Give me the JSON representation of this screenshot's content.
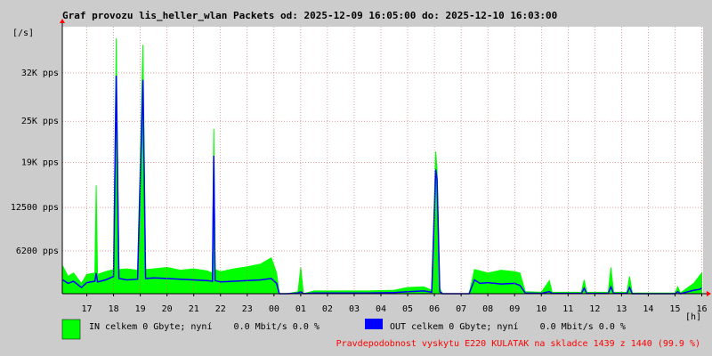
{
  "chart_data": {
    "type": "mrtg",
    "title": "Graf provozu lis_heller_wlan Packets od: 2025-12-09 16:05:00 do: 2025-12-10 16:03:00",
    "y_unit": "[/s]",
    "x_unit": "[h]",
    "xlim": [
      16.083,
      40.05
    ],
    "xticks": [
      17,
      18,
      19,
      20,
      21,
      22,
      23,
      {
        "value": 24,
        "label": "00"
      },
      {
        "value": 25,
        "label": "01"
      },
      {
        "value": 26,
        "label": "02"
      },
      {
        "value": 27,
        "label": "03"
      },
      {
        "value": 28,
        "label": "04"
      },
      {
        "value": 29,
        "label": "05"
      },
      {
        "value": 30,
        "label": "06"
      },
      {
        "value": 31,
        "label": "07"
      },
      {
        "value": 32,
        "label": "08"
      },
      {
        "value": 33,
        "label": "09"
      },
      {
        "value": 34,
        "label": "10"
      },
      {
        "value": 35,
        "label": "11"
      },
      {
        "value": 36,
        "label": "12"
      },
      {
        "value": 37,
        "label": "13"
      },
      {
        "value": 38,
        "label": "14"
      },
      {
        "value": 39,
        "label": "15"
      },
      {
        "value": 40,
        "label": "16"
      }
    ],
    "ylim": [
      0,
      38700
    ],
    "yticks": [
      {
        "value": 6200,
        "label": "6200 pps"
      },
      {
        "value": 12500,
        "label": "12500 pps"
      },
      {
        "value": 19000,
        "label": "19K pps"
      },
      {
        "value": 25000,
        "label": "25K pps"
      },
      {
        "value": 32000,
        "label": "32K pps"
      }
    ],
    "grid": true,
    "x": [
      16.1,
      16.3,
      16.5,
      16.8,
      17.0,
      17.3,
      17.35,
      17.4,
      17.7,
      18.0,
      18.1,
      18.2,
      18.5,
      18.9,
      19.1,
      19.2,
      19.5,
      20.0,
      20.5,
      21.0,
      21.5,
      21.7,
      21.75,
      21.8,
      22.0,
      22.5,
      23.0,
      23.5,
      23.9,
      24.1,
      24.2,
      24.5,
      24.9,
      25.0,
      25.1,
      25.5,
      26.5,
      27.5,
      28.5,
      29.0,
      29.6,
      29.9,
      30.05,
      30.1,
      30.2,
      30.3,
      31.3,
      31.5,
      31.7,
      32.0,
      32.5,
      33.0,
      33.2,
      33.4,
      34.0,
      34.3,
      34.4,
      35.0,
      35.5,
      35.6,
      35.7,
      36.5,
      36.6,
      36.7,
      37.2,
      37.3,
      37.4,
      38.0,
      39.0,
      39.1,
      39.2,
      39.7,
      39.9,
      40.0
    ],
    "series": [
      {
        "name": "IN celkem 0 Gbyte; nyní    0.0 Mbit/s 0.0 %",
        "color": "#00ff00",
        "style": "area",
        "values": [
          4000,
          2500,
          3000,
          1500,
          2800,
          3000,
          15700,
          2800,
          3200,
          3500,
          37000,
          3500,
          3600,
          3400,
          36100,
          3500,
          3600,
          3800,
          3400,
          3600,
          3300,
          3000,
          23900,
          3500,
          3200,
          3600,
          3900,
          4300,
          5200,
          3000,
          0,
          0,
          300,
          3800,
          0,
          400,
          400,
          400,
          500,
          900,
          1000,
          500,
          20600,
          18000,
          800,
          0,
          0,
          3500,
          3300,
          3000,
          3400,
          3200,
          3000,
          300,
          200,
          1900,
          200,
          200,
          200,
          2000,
          200,
          200,
          3800,
          200,
          200,
          2500,
          100,
          100,
          100,
          1000,
          100,
          1500,
          2500,
          3000
        ]
      },
      {
        "name": "OUT celkem 0 Gbyte; nyní    0.0 Mbit/s 0.0 %",
        "color": "#0000ff",
        "style": "line",
        "values": [
          2000,
          1500,
          1800,
          900,
          1600,
          1800,
          3000,
          1700,
          2000,
          2500,
          31600,
          2200,
          2000,
          2100,
          31000,
          2200,
          2300,
          2200,
          2100,
          2000,
          1900,
          1800,
          20000,
          1900,
          1700,
          1800,
          1900,
          2000,
          2200,
          1500,
          0,
          0,
          100,
          300,
          0,
          100,
          100,
          100,
          150,
          300,
          400,
          200,
          18000,
          16500,
          300,
          0,
          0,
          2000,
          1500,
          1600,
          1400,
          1500,
          1200,
          100,
          50,
          300,
          50,
          50,
          50,
          800,
          50,
          50,
          1000,
          50,
          50,
          900,
          0,
          0,
          0,
          300,
          0,
          500,
          600,
          800
        ]
      }
    ],
    "footer": "Pravdepodobnost vyskytu E220 KULATAK na skladce 1439 z 1440 (99.9 %)"
  }
}
